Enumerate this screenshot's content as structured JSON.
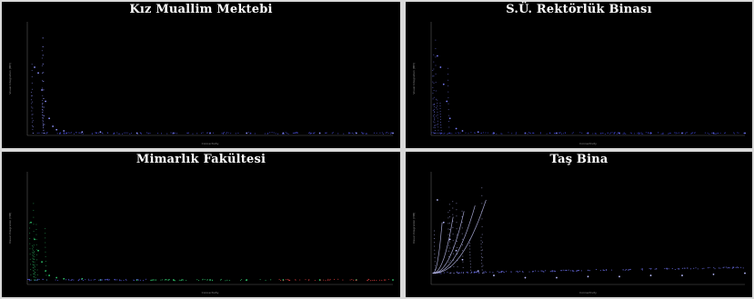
{
  "chart_data": [
    {
      "type": "scatter",
      "title": "Kız Muallim Mektebi",
      "xlabel": "Connectivity",
      "ylabel": "Visual Integration [HH]",
      "grid": false,
      "legend": "none",
      "series_colors": [
        "#4a4fd6",
        "#8f93ff"
      ],
      "x": [
        0.02,
        0.03,
        0.04,
        0.05,
        0.06,
        0.07,
        0.08,
        0.1,
        0.15,
        0.2,
        0.3,
        0.4,
        0.5,
        0.6,
        0.7,
        0.8,
        0.9,
        1.0
      ],
      "y": [
        0.6,
        0.55,
        0.4,
        0.3,
        0.15,
        0.08,
        0.05,
        0.04,
        0.03,
        0.03,
        0.02,
        0.02,
        0.02,
        0.02,
        0.02,
        0.02,
        0.02,
        0.02
      ]
    },
    {
      "type": "scatter",
      "title": "S.Ü. Rektörlük Binası",
      "xlabel": "Connectivity",
      "ylabel": "Visual Integration [HH]",
      "grid": false,
      "legend": "none",
      "series_colors": [
        "#3a3fc4",
        "#7a7fff"
      ],
      "x": [
        0.02,
        0.03,
        0.04,
        0.05,
        0.06,
        0.08,
        0.1,
        0.15,
        0.2,
        0.3,
        0.4,
        0.5,
        0.6,
        0.7,
        0.8,
        0.9,
        1.0
      ],
      "y": [
        0.7,
        0.6,
        0.45,
        0.3,
        0.15,
        0.06,
        0.04,
        0.03,
        0.02,
        0.02,
        0.02,
        0.02,
        0.02,
        0.02,
        0.02,
        0.02,
        0.02
      ]
    },
    {
      "type": "scatter",
      "title": "Mimarlık Fakültesi",
      "xlabel": "Connectivity",
      "ylabel": "Visual Integration [HH]",
      "grid": false,
      "legend": "none",
      "series_colors": [
        "#5b5fe8",
        "#2fbf6a",
        "#e04040"
      ],
      "x": [
        0.01,
        0.02,
        0.03,
        0.04,
        0.05,
        0.06,
        0.08,
        0.1,
        0.15,
        0.2,
        0.3,
        0.4,
        0.5,
        0.6,
        0.7,
        0.8,
        0.9,
        1.0
      ],
      "y": [
        0.55,
        0.4,
        0.3,
        0.2,
        0.12,
        0.08,
        0.06,
        0.05,
        0.05,
        0.04,
        0.04,
        0.04,
        0.04,
        0.04,
        0.04,
        0.04,
        0.04,
        0.04
      ]
    },
    {
      "type": "scatter",
      "title": "Taş Bina",
      "xlabel": "Connectivity",
      "ylabel": "Visual Integration [HH]",
      "grid": false,
      "legend": "none",
      "series_colors": [
        "#6e72f0",
        "#b9bbff"
      ],
      "x": [
        0.02,
        0.04,
        0.06,
        0.08,
        0.1,
        0.15,
        0.2,
        0.3,
        0.4,
        0.5,
        0.6,
        0.7,
        0.8,
        0.9,
        1.0
      ],
      "y": [
        0.75,
        0.55,
        0.4,
        0.3,
        0.22,
        0.12,
        0.08,
        0.06,
        0.06,
        0.07,
        0.07,
        0.08,
        0.08,
        0.09,
        0.1
      ]
    }
  ]
}
